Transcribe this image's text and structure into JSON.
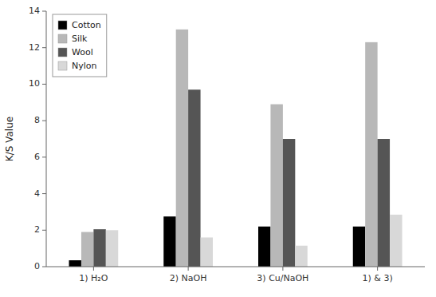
{
  "chart_data": {
    "type": "bar",
    "categories": [
      "1) H₂O",
      "2) NaOH",
      "3) Cu/NaOH",
      "1) & 3)"
    ],
    "series": [
      {
        "name": "Cotton",
        "color": "#000000",
        "values": [
          0.35,
          2.75,
          2.2,
          2.2
        ]
      },
      {
        "name": "Silk",
        "color": "#b8b8b8",
        "values": [
          1.9,
          13.0,
          8.9,
          12.3
        ]
      },
      {
        "name": "Wool",
        "color": "#555555",
        "values": [
          2.05,
          9.7,
          7.0,
          7.0
        ]
      },
      {
        "name": "Nylon",
        "color": "#d8d8d8",
        "values": [
          2.0,
          1.6,
          1.15,
          2.85
        ]
      }
    ],
    "y_label": "K/S Value",
    "ylim": [
      0,
      14
    ],
    "yticks": [
      0,
      2,
      4,
      6,
      8,
      10,
      12,
      14
    ],
    "legend": "upper left",
    "grid": false
  }
}
